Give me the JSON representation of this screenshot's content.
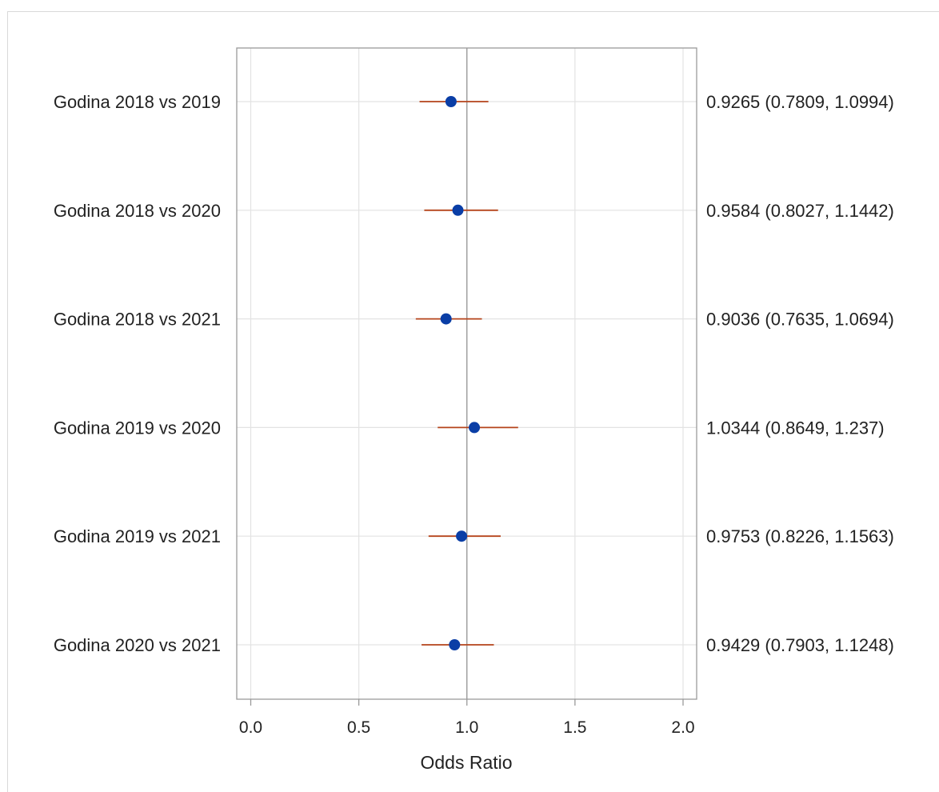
{
  "chart_data": {
    "type": "forest",
    "xlabel": "Odds Ratio",
    "xlim": [
      -0.06,
      2.06
    ],
    "xticks": [
      0,
      0.5,
      1,
      1.5,
      2
    ],
    "xtick_labels": [
      "0.0",
      "0.5",
      "1.0",
      "1.5",
      "2.0"
    ],
    "reference_line": 1,
    "grid": true,
    "rows": [
      {
        "label": "Godina 2018 vs 2019",
        "estimate": 0.9265,
        "lower": 0.7809,
        "upper": 1.0994,
        "ci_text": "0.9265 (0.7809, 1.0994)"
      },
      {
        "label": "Godina 2018 vs 2020",
        "estimate": 0.9584,
        "lower": 0.8027,
        "upper": 1.1442,
        "ci_text": "0.9584 (0.8027, 1.1442)"
      },
      {
        "label": "Godina 2018 vs 2021",
        "estimate": 0.9036,
        "lower": 0.7635,
        "upper": 1.0694,
        "ci_text": "0.9036 (0.7635, 1.0694)"
      },
      {
        "label": "Godina 2019 vs 2020",
        "estimate": 1.0344,
        "lower": 0.8649,
        "upper": 1.237,
        "ci_text": "1.0344 (0.8649, 1.237)"
      },
      {
        "label": "Godina 2019 vs 2021",
        "estimate": 0.9753,
        "lower": 0.8226,
        "upper": 1.1563,
        "ci_text": "0.9753 (0.8226, 1.1563)"
      },
      {
        "label": "Godina 2020 vs 2021",
        "estimate": 0.9429,
        "lower": 0.7903,
        "upper": 1.1248,
        "ci_text": "0.9429 (0.7903, 1.1248)"
      }
    ],
    "colors": {
      "marker": "#0a3ea6",
      "ci_line": "#b5441b",
      "grid": "#e3e3e3",
      "reference": "#9a9a9a",
      "frame": "#9a9a9a"
    }
  }
}
